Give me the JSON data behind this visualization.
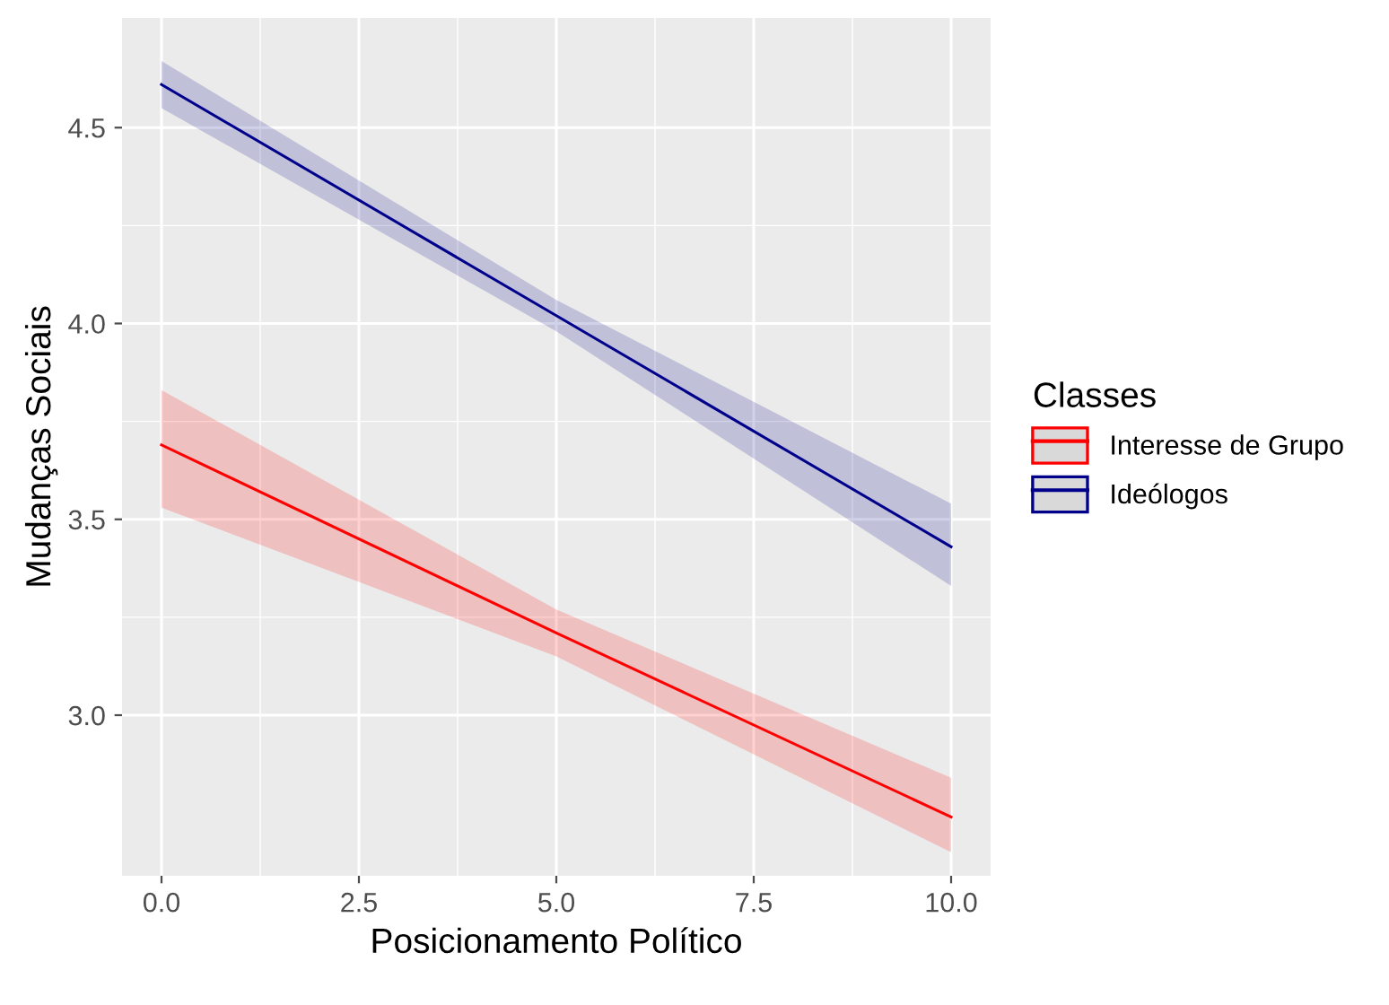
{
  "chart_data": {
    "type": "line",
    "xlabel": "Posicionamento Político",
    "ylabel": "Mudanças Sociais",
    "legend_title": "Classes",
    "x": [
      0,
      5,
      10
    ],
    "series": [
      {
        "name": "Interesse de Grupo",
        "color": "#ff0000",
        "values": [
          3.69,
          3.21,
          2.74
        ],
        "lower": [
          3.53,
          3.15,
          2.65
        ],
        "upper": [
          3.83,
          3.27,
          2.84
        ]
      },
      {
        "name": "Ideólogos",
        "color": "#00008b",
        "values": [
          4.61,
          4.02,
          3.43
        ],
        "lower": [
          4.55,
          3.98,
          3.33
        ],
        "upper": [
          4.67,
          4.06,
          3.54
        ]
      }
    ],
    "xlim": [
      -0.5,
      10.5
    ],
    "ylim": [
      2.59,
      4.78
    ],
    "xticks": [
      {
        "value": 0,
        "label": "0.0"
      },
      {
        "value": 2.5,
        "label": "2.5"
      },
      {
        "value": 5,
        "label": "5.0"
      },
      {
        "value": 7.5,
        "label": "7.5"
      },
      {
        "value": 10,
        "label": "10.0"
      }
    ],
    "yticks": [
      {
        "value": 3,
        "label": "3.0"
      },
      {
        "value": 3.5,
        "label": "3.5"
      },
      {
        "value": 4,
        "label": "4.0"
      },
      {
        "value": 4.5,
        "label": "4.5"
      }
    ],
    "grid": true,
    "legend": "right",
    "line_style": "solid",
    "marker": "none"
  }
}
